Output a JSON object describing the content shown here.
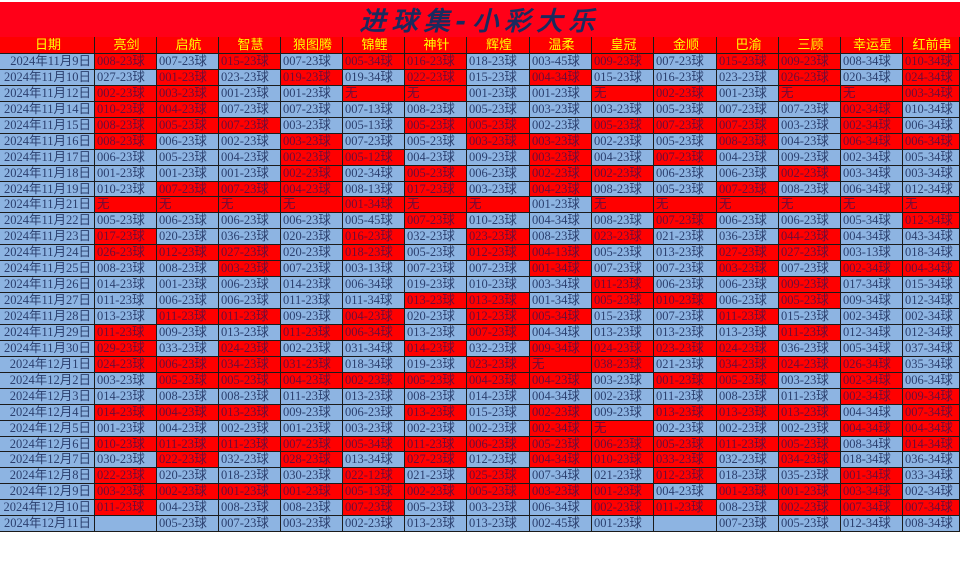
{
  "title": "进球集-小彩大乐",
  "colors": {
    "hit": "#ff0000",
    "miss": "#8db4e2",
    "header_bg": "#ff0000",
    "header_text": "#ffff00"
  },
  "headers": [
    "日期",
    "亮剑",
    "启航",
    "智慧",
    "狼图腾",
    "锦鲤",
    "神针",
    "辉煌",
    "温柔",
    "皇冠",
    "金顺",
    "巴渝",
    "三顾",
    "幸运星",
    "红前串"
  ],
  "rows": [
    {
      "date": "2024年11月9日",
      "cells": [
        "008-23球",
        "007-23球",
        "015-23球",
        "007-23球",
        "005-34球",
        "016-23球",
        "018-23球",
        "003-45球",
        "009-23球",
        "007-23球",
        "015-23球",
        "009-23球",
        "008-34球",
        "010-34球"
      ],
      "red": [
        1,
        0,
        1,
        0,
        1,
        1,
        0,
        0,
        1,
        0,
        1,
        1,
        0,
        1
      ]
    },
    {
      "date": "2024年11月10日",
      "cells": [
        "027-23球",
        "001-23球",
        "023-23球",
        "019-23球",
        "019-34球",
        "022-23球",
        "015-23球",
        "004-34球",
        "015-23球",
        "016-23球",
        "023-23球",
        "026-23球",
        "020-34球",
        "024-34球"
      ],
      "red": [
        0,
        1,
        0,
        1,
        0,
        1,
        0,
        1,
        0,
        0,
        0,
        1,
        0,
        1
      ]
    },
    {
      "date": "2024年11月12日",
      "cells": [
        "002-23球",
        "003-23球",
        "001-23球",
        "001-23球",
        "无",
        "无",
        "001-23球",
        "001-23球",
        "无",
        "002-23球",
        "001-23球",
        "无",
        "无",
        "003-34球"
      ],
      "red": [
        1,
        1,
        0,
        0,
        1,
        1,
        0,
        0,
        1,
        1,
        0,
        1,
        1,
        1
      ]
    },
    {
      "date": "2024年11月14日",
      "cells": [
        "010-23球",
        "004-23球",
        "007-23球",
        "007-23球",
        "007-13球",
        "008-23球",
        "005-23球",
        "003-23球",
        "003-23球",
        "005-23球",
        "007-23球",
        "007-23球",
        "002-34球",
        "010-34球"
      ],
      "red": [
        1,
        1,
        0,
        0,
        0,
        0,
        0,
        0,
        0,
        0,
        0,
        0,
        1,
        0
      ]
    },
    {
      "date": "2024年11月15日",
      "cells": [
        "008-23球",
        "005-23球",
        "007-23球",
        "003-23球",
        "005-13球",
        "005-23球",
        "005-23球",
        "002-23球",
        "005-23球",
        "007-23球",
        "007-23球",
        "003-23球",
        "002-34球",
        "006-34球"
      ],
      "red": [
        1,
        1,
        1,
        0,
        0,
        1,
        1,
        0,
        1,
        1,
        1,
        0,
        1,
        0
      ]
    },
    {
      "date": "2024年11月16日",
      "cells": [
        "008-23球",
        "006-23球",
        "002-23球",
        "003-23球",
        "007-23球",
        "005-23球",
        "003-23球",
        "003-23球",
        "002-23球",
        "005-23球",
        "008-23球",
        "004-23球",
        "006-34球",
        "006-34球"
      ],
      "red": [
        1,
        0,
        0,
        1,
        0,
        0,
        1,
        1,
        0,
        0,
        1,
        0,
        1,
        1
      ]
    },
    {
      "date": "2024年11月17日",
      "cells": [
        "006-23球",
        "005-23球",
        "004-23球",
        "002-23球",
        "005-12球",
        "004-23球",
        "009-23球",
        "003-23球",
        "004-23球",
        "007-23球",
        "004-23球",
        "009-23球",
        "002-34球",
        "005-34球"
      ],
      "red": [
        0,
        0,
        0,
        1,
        1,
        0,
        0,
        1,
        0,
        1,
        0,
        0,
        0,
        0
      ]
    },
    {
      "date": "2024年11月18日",
      "cells": [
        "001-23球",
        "001-23球",
        "001-23球",
        "002-23球",
        "002-34球",
        "005-23球",
        "006-23球",
        "002-23球",
        "002-23球",
        "006-23球",
        "006-23球",
        "002-23球",
        "003-34球",
        "003-34球"
      ],
      "red": [
        0,
        0,
        0,
        1,
        0,
        1,
        0,
        1,
        1,
        0,
        0,
        1,
        0,
        0
      ]
    },
    {
      "date": "2024年11月19日",
      "cells": [
        "010-23球",
        "007-23球",
        "007-23球",
        "004-23球",
        "008-13球",
        "017-23球",
        "003-23球",
        "004-23球",
        "008-23球",
        "005-23球",
        "007-23球",
        "008-23球",
        "006-34球",
        "012-34球"
      ],
      "red": [
        0,
        1,
        1,
        1,
        0,
        1,
        0,
        1,
        0,
        0,
        1,
        0,
        0,
        0
      ]
    },
    {
      "date": "2024年11月21日",
      "cells": [
        "无",
        "无",
        "无",
        "无",
        "001-34球",
        "无",
        "无",
        "001-23球",
        "无",
        "无",
        "无",
        "无",
        "无",
        "无"
      ],
      "red": [
        1,
        1,
        1,
        1,
        1,
        1,
        1,
        0,
        1,
        1,
        1,
        1,
        1,
        1
      ]
    },
    {
      "date": "2024年11月22日",
      "cells": [
        "005-23球",
        "006-23球",
        "006-23球",
        "006-23球",
        "005-45球",
        "007-23球",
        "010-23球",
        "004-34球",
        "008-23球",
        "007-23球",
        "006-23球",
        "006-23球",
        "005-34球",
        "012-34球"
      ],
      "red": [
        0,
        0,
        0,
        0,
        0,
        1,
        0,
        0,
        0,
        1,
        0,
        0,
        0,
        1
      ]
    },
    {
      "date": "2024年11月23日",
      "cells": [
        "017-23球",
        "020-23球",
        "036-23球",
        "020-23球",
        "016-23球",
        "032-23球",
        "023-23球",
        "008-23球",
        "023-23球",
        "021-23球",
        "036-23球",
        "044-23球",
        "004-34球",
        "043-34球"
      ],
      "red": [
        1,
        0,
        0,
        0,
        1,
        0,
        1,
        0,
        1,
        0,
        0,
        1,
        0,
        0
      ]
    },
    {
      "date": "2024年11月24日",
      "cells": [
        "026-23球",
        "012-23球",
        "027-23球",
        "020-23球",
        "018-23球",
        "005-23球",
        "012-23球",
        "004-13球",
        "005-23球",
        "013-23球",
        "027-23球",
        "027-23球",
        "003-13球",
        "018-34球"
      ],
      "red": [
        1,
        1,
        1,
        0,
        1,
        0,
        1,
        1,
        0,
        0,
        1,
        1,
        0,
        0
      ]
    },
    {
      "date": "2024年11月25日",
      "cells": [
        "008-23球",
        "008-23球",
        "003-23球",
        "007-23球",
        "003-13球",
        "007-23球",
        "007-23球",
        "001-34球",
        "007-23球",
        "007-23球",
        "003-23球",
        "007-23球",
        "002-34球",
        "004-34球"
      ],
      "red": [
        0,
        0,
        1,
        0,
        0,
        0,
        0,
        1,
        0,
        0,
        1,
        0,
        1,
        1
      ]
    },
    {
      "date": "2024年11月26日",
      "cells": [
        "014-23球",
        "001-23球",
        "006-23球",
        "014-23球",
        "006-34球",
        "019-23球",
        "010-23球",
        "003-34球",
        "011-23球",
        "006-23球",
        "006-23球",
        "009-23球",
        "017-34球",
        "015-34球"
      ],
      "red": [
        0,
        0,
        0,
        0,
        0,
        0,
        0,
        0,
        1,
        0,
        0,
        1,
        0,
        0
      ]
    },
    {
      "date": "2024年11月27日",
      "cells": [
        "011-23球",
        "006-23球",
        "006-23球",
        "011-23球",
        "011-34球",
        "013-23球",
        "013-23球",
        "001-34球",
        "005-23球",
        "010-23球",
        "006-23球",
        "005-23球",
        "009-34球",
        "012-34球"
      ],
      "red": [
        0,
        0,
        0,
        0,
        0,
        1,
        1,
        0,
        1,
        1,
        0,
        1,
        0,
        0
      ]
    },
    {
      "date": "2024年11月28日",
      "cells": [
        "013-23球",
        "011-23球",
        "011-23球",
        "009-23球",
        "004-23球",
        "020-23球",
        "012-23球",
        "005-34球",
        "015-23球",
        "007-23球",
        "011-23球",
        "015-23球",
        "002-34球",
        "002-34球"
      ],
      "red": [
        0,
        1,
        1,
        0,
        1,
        0,
        1,
        1,
        0,
        0,
        1,
        0,
        0,
        0
      ]
    },
    {
      "date": "2024年11月29日",
      "cells": [
        "011-23球",
        "009-23球",
        "013-23球",
        "011-23球",
        "006-34球",
        "013-23球",
        "007-23球",
        "004-34球",
        "013-23球",
        "013-23球",
        "013-23球",
        "011-23球",
        "012-34球",
        "012-34球"
      ],
      "red": [
        1,
        0,
        0,
        1,
        1,
        0,
        1,
        0,
        0,
        0,
        0,
        1,
        0,
        0
      ]
    },
    {
      "date": "2024年11月30日",
      "cells": [
        "029-23球",
        "033-23球",
        "024-23球",
        "002-23球",
        "031-34球",
        "014-23球",
        "032-23球",
        "009-34球",
        "024-23球",
        "023-23球",
        "024-23球",
        "036-23球",
        "005-34球",
        "037-34球"
      ],
      "red": [
        1,
        0,
        1,
        0,
        0,
        1,
        0,
        1,
        1,
        1,
        1,
        0,
        0,
        0
      ]
    },
    {
      "date": "2024年12月1日",
      "cells": [
        "024-23球",
        "006-23球",
        "034-23球",
        "031-23球",
        "018-34球",
        "019-23球",
        "023-23球",
        "无",
        "038-23球",
        "021-23球",
        "034-23球",
        "024-23球",
        "026-34球",
        "035-34球"
      ],
      "red": [
        1,
        1,
        1,
        1,
        0,
        0,
        1,
        1,
        1,
        0,
        1,
        1,
        1,
        0
      ]
    },
    {
      "date": "2024年12月2日",
      "cells": [
        "003-23球",
        "005-23球",
        "005-23球",
        "004-23球",
        "002-23球",
        "005-23球",
        "004-23球",
        "004-23球",
        "003-23球",
        "001-23球",
        "005-23球",
        "003-23球",
        "002-34球",
        "006-34球"
      ],
      "red": [
        0,
        1,
        1,
        1,
        1,
        1,
        1,
        1,
        0,
        1,
        1,
        0,
        1,
        0
      ]
    },
    {
      "date": "2024年12月3日",
      "cells": [
        "014-23球",
        "008-23球",
        "008-23球",
        "011-23球",
        "013-23球",
        "008-23球",
        "014-23球",
        "004-34球",
        "002-23球",
        "011-23球",
        "008-23球",
        "011-23球",
        "002-34球",
        "009-34球"
      ],
      "red": [
        0,
        0,
        0,
        0,
        0,
        0,
        0,
        0,
        0,
        0,
        0,
        0,
        1,
        1
      ]
    },
    {
      "date": "2024年12月4日",
      "cells": [
        "014-23球",
        "004-23球",
        "013-23球",
        "009-23球",
        "006-23球",
        "013-23球",
        "015-23球",
        "002-23球",
        "009-23球",
        "013-23球",
        "013-23球",
        "013-23球",
        "004-34球",
        "007-34球"
      ],
      "red": [
        1,
        1,
        1,
        0,
        0,
        1,
        0,
        1,
        0,
        1,
        1,
        1,
        0,
        1
      ]
    },
    {
      "date": "2024年12月5日",
      "cells": [
        "001-23球",
        "004-23球",
        "002-23球",
        "001-23球",
        "003-23球",
        "002-23球",
        "002-23球",
        "002-34球",
        "无",
        "002-23球",
        "002-23球",
        "002-23球",
        "004-34球",
        "004-34球"
      ],
      "red": [
        0,
        0,
        0,
        0,
        0,
        0,
        0,
        1,
        1,
        0,
        0,
        0,
        1,
        1
      ]
    },
    {
      "date": "2024年12月6日",
      "cells": [
        "010-23球",
        "011-23球",
        "011-23球",
        "007-23球",
        "005-34球",
        "011-23球",
        "006-23球",
        "005-23球",
        "006-23球",
        "005-23球",
        "011-23球",
        "005-23球",
        "008-34球",
        "014-34球"
      ],
      "red": [
        1,
        1,
        1,
        1,
        1,
        1,
        1,
        1,
        1,
        1,
        1,
        1,
        0,
        1
      ]
    },
    {
      "date": "2024年12月7日",
      "cells": [
        "030-23球",
        "022-23球",
        "032-23球",
        "028-23球",
        "013-34球",
        "027-23球",
        "012-23球",
        "004-34球",
        "010-23球",
        "033-23球",
        "032-23球",
        "034-23球",
        "018-34球",
        "036-34球"
      ],
      "red": [
        0,
        1,
        0,
        1,
        0,
        1,
        0,
        1,
        1,
        1,
        0,
        1,
        0,
        0
      ]
    },
    {
      "date": "2024年12月8日",
      "cells": [
        "022-23球",
        "020-23球",
        "018-23球",
        "030-23球",
        "022-12球",
        "021-23球",
        "025-23球",
        "007-34球",
        "021-23球",
        "012-23球",
        "018-23球",
        "035-23球",
        "001-34球",
        "033-34球"
      ],
      "red": [
        1,
        0,
        0,
        0,
        1,
        0,
        1,
        0,
        0,
        1,
        0,
        0,
        1,
        0
      ]
    },
    {
      "date": "2024年12月9日",
      "cells": [
        "003-23球",
        "002-23球",
        "001-23球",
        "001-23球",
        "005-13球",
        "002-23球",
        "005-23球",
        "003-23球",
        "001-23球",
        "004-23球",
        "001-23球",
        "001-23球",
        "003-34球",
        "002-34球"
      ],
      "red": [
        1,
        1,
        1,
        1,
        1,
        1,
        1,
        1,
        1,
        0,
        1,
        1,
        1,
        0
      ]
    },
    {
      "date": "2024年12月10日",
      "cells": [
        "011-23球",
        "004-23球",
        "008-23球",
        "008-23球",
        "007-23球",
        "005-23球",
        "003-23球",
        "006-34球",
        "002-23球",
        "011-23球",
        "008-23球",
        "002-23球",
        "007-34球",
        "007-34球"
      ],
      "red": [
        1,
        0,
        0,
        0,
        1,
        0,
        0,
        0,
        1,
        1,
        0,
        1,
        1,
        1
      ]
    },
    {
      "date": "2024年12月11日",
      "cells": [
        "",
        "005-23球",
        "007-23球",
        "003-23球",
        "002-23球",
        "013-23球",
        "013-23球",
        "002-45球",
        "001-23球",
        "",
        "007-23球",
        "005-23球",
        "012-34球",
        "008-34球"
      ],
      "red": [
        0,
        0,
        0,
        0,
        0,
        0,
        0,
        0,
        0,
        0,
        0,
        0,
        0,
        0
      ]
    }
  ]
}
